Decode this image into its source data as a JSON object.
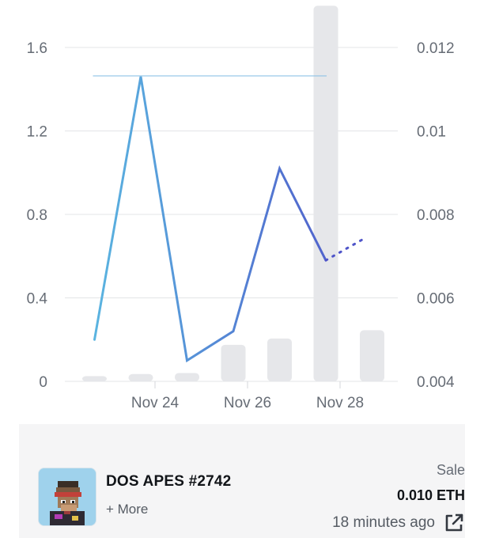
{
  "chart_data": {
    "type": "bar+line",
    "x_tick_labels": [
      "Nov 24",
      "Nov 26",
      "Nov 28"
    ],
    "left_axis": {
      "ticks": [
        "0",
        "0.4",
        "0.8",
        "1.2",
        "1.6"
      ],
      "range": [
        0,
        1.6
      ]
    },
    "right_axis": {
      "ticks": [
        "0.004",
        "0.006",
        "0.008",
        "0.01",
        "0.012"
      ],
      "range": [
        0.004,
        0.012
      ]
    },
    "bars": [
      {
        "date": "Nov 23",
        "value": 0.025
      },
      {
        "date": "Nov 24",
        "value": 0.035
      },
      {
        "date": "Nov 25",
        "value": 0.04
      },
      {
        "date": "Nov 26",
        "value": 0.175
      },
      {
        "date": "Nov 27",
        "value": 0.205
      },
      {
        "date": "Nov 28",
        "value": 1.8
      },
      {
        "date": "Nov 29",
        "value": 0.245
      }
    ],
    "line": [
      {
        "date": "Nov 23",
        "value": 0.005
      },
      {
        "date": "Nov 24",
        "value": 0.0113
      },
      {
        "date": "Nov 25",
        "value": 0.0045
      },
      {
        "date": "Nov 26",
        "value": 0.0052
      },
      {
        "date": "Nov 27",
        "value": 0.0091
      },
      {
        "date": "Nov 28",
        "value": 0.0069
      }
    ],
    "line_projection": [
      {
        "date": "Nov 28",
        "value": 0.0069
      },
      {
        "date": "Nov 29",
        "value": 0.0074
      }
    ],
    "reference_line_value": 0.0113,
    "grid": true,
    "colors": {
      "bar": "#e6e7ea",
      "line_start": "#5ab4e0",
      "line_end": "#4f55c9",
      "grid": "#e3e4e7",
      "reference": "#8fc3e6"
    }
  },
  "sale_card": {
    "name": "DOS APES #2742",
    "more_label": "+ More",
    "event_type": "Sale",
    "price": "0.010 ETH",
    "time_ago": "18 minutes ago",
    "link_icon": "external-link-icon"
  }
}
